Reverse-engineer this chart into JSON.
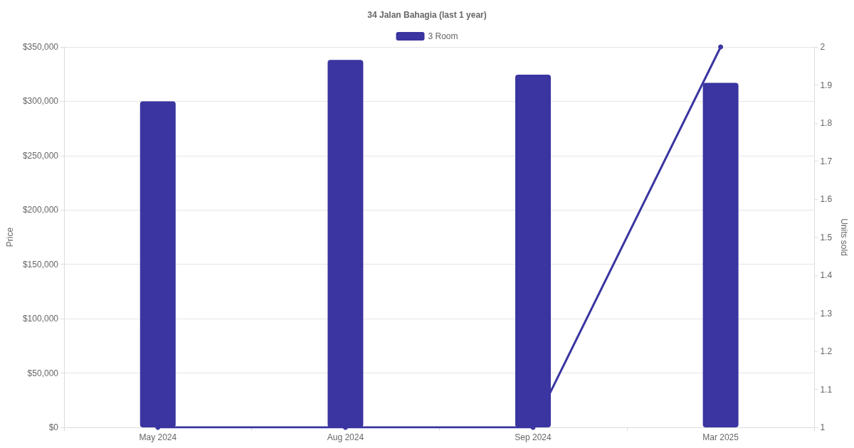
{
  "chart_data": {
    "type": "bar",
    "title": "34 Jalan Bahagia (last 1 year)",
    "ylabel": "Price",
    "y2label": "Units sold",
    "categories": [
      "May 2024",
      "Aug 2024",
      "Sep 2024",
      "Mar 2025"
    ],
    "series": [
      {
        "name": "3 Room",
        "color": "#3a35a0",
        "values": [
          300000,
          338000,
          324500,
          317000
        ]
      },
      {
        "type": "line",
        "axis": "y2",
        "color": "#3a35a0",
        "values": [
          1,
          1,
          1,
          2
        ],
        "marker": "circle"
      }
    ],
    "ylim": [
      0,
      350000
    ],
    "yticks": [
      {
        "value": 0,
        "label": "$0"
      },
      {
        "value": 50000,
        "label": "$50,000"
      },
      {
        "value": 100000,
        "label": "$100,000"
      },
      {
        "value": 150000,
        "label": "$150,000"
      },
      {
        "value": 200000,
        "label": "$200,000"
      },
      {
        "value": 250000,
        "label": "$250,000"
      },
      {
        "value": 300000,
        "label": "$300,000"
      },
      {
        "value": 350000,
        "label": "$350,000"
      }
    ],
    "y2lim": [
      1,
      2
    ],
    "y2ticks": [
      1,
      1.1,
      1.2,
      1.3,
      1.4,
      1.5,
      1.6,
      1.7,
      1.8,
      1.9,
      2
    ],
    "grid": "y",
    "legend": "top"
  }
}
